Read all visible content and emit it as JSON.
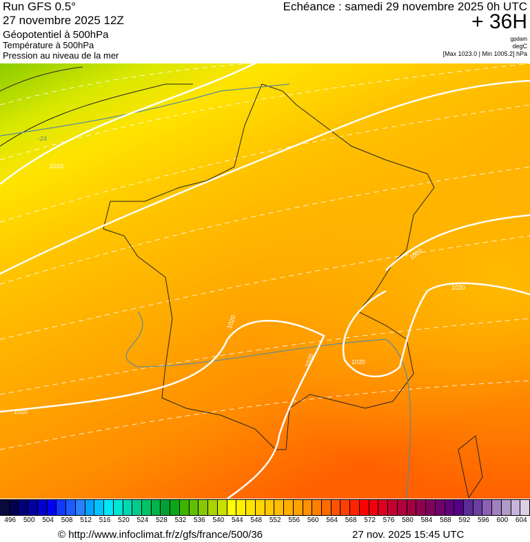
{
  "header": {
    "run": "Run GFS 0.5°",
    "run_date": "27 novembre 2025 12Z",
    "field_geopotential": "Géopotentiel à 500hPa",
    "field_temperature": "Température à 500hPa",
    "field_pressure": "Pression au niveau de la mer",
    "echeance": "Echéance : samedi 29 novembre 2025 0h UTC",
    "lead_time": "+ 36H",
    "unit_geopotential": "gpdam",
    "unit_temperature": "degC",
    "pressure_range": "[Max 1023.0 | Min 1005.2] hPa"
  },
  "map": {
    "contour_labels": [
      "-24",
      "1010",
      "1020",
      "1020",
      "1020",
      "1020",
      "1020",
      "1020"
    ]
  },
  "colorbar": {
    "labels": [
      "496",
      "500",
      "504",
      "508",
      "512",
      "516",
      "520",
      "524",
      "528",
      "532",
      "536",
      "540",
      "544",
      "548",
      "552",
      "556",
      "560",
      "564",
      "568",
      "572",
      "576",
      "580",
      "584",
      "588",
      "592",
      "596",
      "600",
      "604"
    ],
    "colors": [
      "#0a0a3c",
      "#00004e",
      "#00007a",
      "#00009e",
      "#0000cc",
      "#0000f5",
      "#1038ff",
      "#1c5cff",
      "#2a80ff",
      "#00a4ff",
      "#00c4ff",
      "#00e8f8",
      "#00e4d4",
      "#00d8b0",
      "#00cc8c",
      "#00c464",
      "#00b44c",
      "#00a034",
      "#08a818",
      "#3cb400",
      "#60c000",
      "#88c800",
      "#a8d400",
      "#c8e200",
      "#ffff00",
      "#fff000",
      "#ffe400",
      "#ffd400",
      "#ffc800",
      "#ffbc00",
      "#ffae00",
      "#ffa000",
      "#ff9000",
      "#ff8000",
      "#ff6a00",
      "#ff5200",
      "#ff4000",
      "#ff2400",
      "#ff0000",
      "#f0000c",
      "#dc0020",
      "#c40030",
      "#b0003c",
      "#a00040",
      "#90004c",
      "#80005c",
      "#70006c",
      "#62007c",
      "#540088",
      "#5c2c98",
      "#6c40a0",
      "#8c60b4",
      "#a080c0",
      "#b09ac8",
      "#cab4dc",
      "#dcd0e4"
    ]
  },
  "footer": {
    "source": "© http://www.infoclimat.fr/z/gfs/france/500/36",
    "timestamp": "27 nov. 2025 15:45 UTC"
  }
}
